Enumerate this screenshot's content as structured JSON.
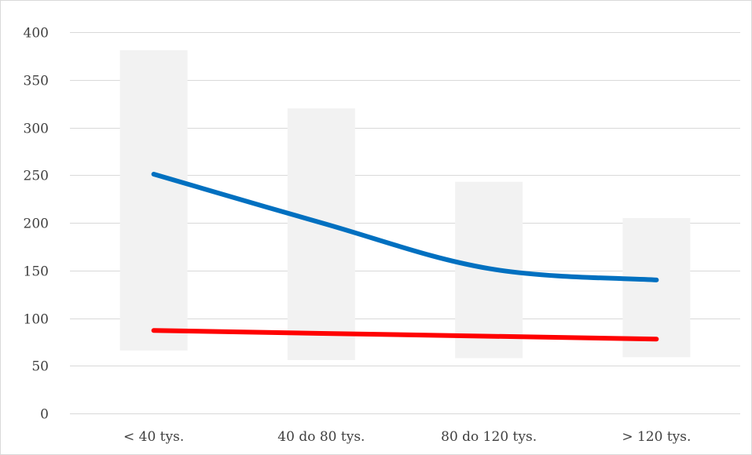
{
  "chart_data": {
    "type": "bar",
    "title": "",
    "xlabel": "",
    "ylabel": "",
    "ylim": [
      0,
      400
    ],
    "y_ticks": [
      0,
      50,
      100,
      150,
      200,
      250,
      300,
      350,
      400
    ],
    "y_tick_labels": [
      "0",
      "50",
      "100",
      "150",
      "200",
      "250",
      "300",
      "350",
      "400"
    ],
    "categories": [
      "< 40 tys.",
      "40 do 80 tys.",
      "80 do 120 tys.",
      "> 120 tys."
    ],
    "grid": true,
    "legend": "none",
    "range_bars": {
      "low": [
        66,
        56,
        58,
        59
      ],
      "high": [
        381,
        320,
        243,
        205
      ],
      "color": "#f2f2f2"
    },
    "series": [
      {
        "type": "line",
        "smooth": true,
        "color": "#0070c0",
        "values": [
          251,
          200,
          152,
          140
        ]
      },
      {
        "type": "line",
        "smooth": false,
        "color": "#ff0000",
        "values": [
          87,
          84,
          81,
          78
        ]
      }
    ]
  }
}
